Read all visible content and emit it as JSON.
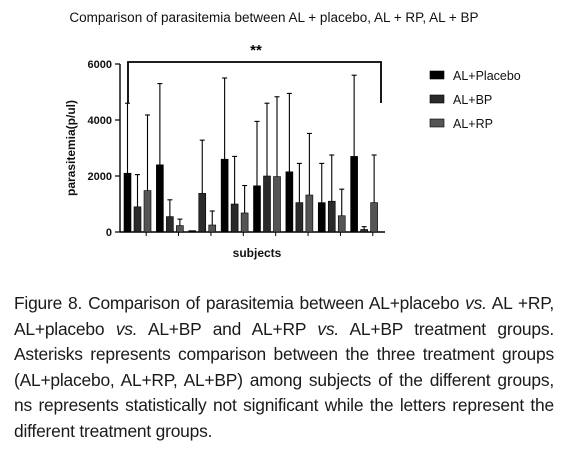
{
  "chart_data": {
    "type": "bar",
    "title": "Comparison of parasitemia between AL + placebo, AL + RP, AL + BP",
    "xlabel": "subjects",
    "ylabel": "parasitemia(p/ul)",
    "ylim": [
      0,
      6000
    ],
    "yticks": [
      0,
      2000,
      4000,
      6000
    ],
    "ytick_labels": [
      "0",
      "2000",
      "4000",
      "6000"
    ],
    "grid": false,
    "legend_position": "right",
    "significance_label": "**",
    "group_count": 8,
    "series": [
      {
        "name": "AL+Placebo",
        "color": "#000000",
        "values": [
          2100,
          2400,
          50,
          2600,
          1650,
          2150,
          1050,
          2700
        ],
        "errors": [
          2500,
          2900,
          0,
          2900,
          2300,
          2800,
          1400,
          2900
        ]
      },
      {
        "name": "AL+BP",
        "color": "#2a2a2a",
        "values": [
          900,
          550,
          1380,
          1000,
          2000,
          1050,
          1100,
          90
        ],
        "errors": [
          1150,
          600,
          1900,
          1700,
          2600,
          1400,
          1650,
          100
        ]
      },
      {
        "name": "AL+RP",
        "color": "#555555",
        "values": [
          1480,
          230,
          250,
          680,
          1980,
          1320,
          580,
          1050
        ],
        "errors": [
          2700,
          230,
          500,
          980,
          2850,
          2200,
          950,
          1700
        ]
      }
    ]
  },
  "caption": {
    "label": "Figure 8.",
    "parts": [
      " Comparison of parasitemia between AL+placebo ",
      "vs.",
      " AL +RP, AL+placebo ",
      "vs.",
      " AL+BP and AL+RP ",
      "vs.",
      " AL+BP treatment groups. Asterisks represents comparison between the three treatment groups (AL+placebo, AL+RP, AL+BP) among subjects of the different groups, ns represents statistically not significant while the letters represent the different treatment groups."
    ]
  }
}
